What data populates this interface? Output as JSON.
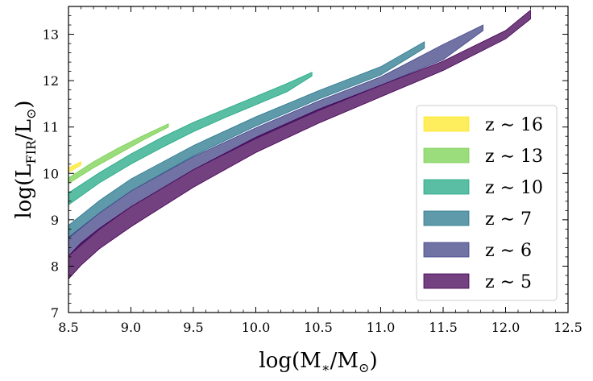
{
  "chart_data": {
    "type": "area",
    "xlabel": "log(M∗/M⊙)",
    "ylabel": "log(LFIR/L⊙)",
    "xlim": [
      8.5,
      12.5
    ],
    "ylim": [
      7,
      13.6
    ],
    "x_ticks": [
      8.5,
      9.0,
      9.5,
      10.0,
      10.5,
      11.0,
      11.5,
      12.0,
      12.5
    ],
    "x_tick_labels": [
      "8.5",
      "9.0",
      "9.5",
      "10.0",
      "10.5",
      "11.0",
      "11.5",
      "12.0",
      "12.5"
    ],
    "y_ticks": [
      7,
      8,
      9,
      10,
      11,
      12,
      13
    ],
    "y_tick_labels": [
      "7",
      "8",
      "9",
      "10",
      "11",
      "12",
      "13"
    ],
    "grid": false,
    "legend_position": "lower-right",
    "series": [
      {
        "name": "z ∼ 16",
        "z": "16",
        "color": "#fde725",
        "x": [
          8.5,
          8.6
        ],
        "lower": [
          10.02,
          10.18
        ],
        "upper": [
          10.12,
          10.25
        ]
      },
      {
        "name": "z ∼ 13",
        "z": "13",
        "color": "#7ad151",
        "x": [
          8.5,
          8.7,
          8.9,
          9.1,
          9.3
        ],
        "lower": [
          9.78,
          10.12,
          10.42,
          10.72,
          11.0
        ],
        "upper": [
          9.9,
          10.25,
          10.55,
          10.82,
          11.07
        ]
      },
      {
        "name": "z ∼ 10",
        "z": "10",
        "color": "#22a884",
        "x": [
          8.5,
          8.75,
          9.0,
          9.25,
          9.5,
          9.75,
          10.0,
          10.25,
          10.45
        ],
        "lower": [
          9.32,
          9.8,
          10.2,
          10.56,
          10.9,
          11.2,
          11.48,
          11.76,
          12.1
        ],
        "upper": [
          9.58,
          10.02,
          10.42,
          10.78,
          11.1,
          11.38,
          11.66,
          11.94,
          12.18
        ]
      },
      {
        "name": "z ∼ 7",
        "z": "7",
        "color": "#2a788e",
        "x": [
          8.5,
          8.75,
          9.0,
          9.5,
          10.0,
          10.5,
          11.0,
          11.35
        ],
        "lower": [
          8.6,
          9.15,
          9.62,
          10.38,
          11.02,
          11.6,
          12.12,
          12.7
        ],
        "upper": [
          8.88,
          9.42,
          9.88,
          10.6,
          11.22,
          11.78,
          12.3,
          12.84
        ]
      },
      {
        "name": "z ∼ 6",
        "z": "6",
        "color": "#414487",
        "x": [
          8.5,
          8.75,
          9.0,
          9.5,
          10.0,
          10.5,
          11.0,
          11.5,
          11.82
        ],
        "lower": [
          8.22,
          8.8,
          9.28,
          10.08,
          10.75,
          11.35,
          11.9,
          12.45,
          13.08
        ],
        "upper": [
          8.62,
          9.15,
          9.62,
          10.36,
          10.98,
          11.56,
          12.08,
          12.78,
          13.2
        ]
      },
      {
        "name": "z ∼ 5",
        "z": "5",
        "color": "#440154",
        "x": [
          8.5,
          8.6,
          8.75,
          9.0,
          9.5,
          10.0,
          10.5,
          11.0,
          11.5,
          12.0,
          12.2
        ],
        "lower": [
          7.72,
          8.02,
          8.38,
          8.85,
          9.7,
          10.45,
          11.08,
          11.65,
          12.22,
          12.9,
          13.33
        ],
        "upper": [
          8.22,
          8.5,
          8.82,
          9.28,
          10.08,
          10.78,
          11.38,
          11.9,
          12.42,
          13.08,
          13.52
        ]
      }
    ]
  }
}
